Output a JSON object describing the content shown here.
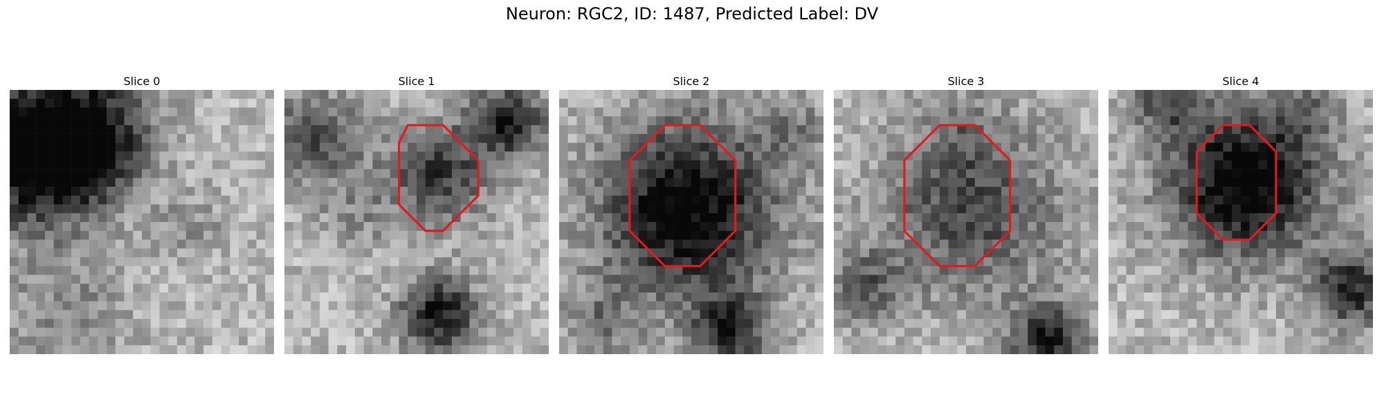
{
  "title": "Neuron: RGC2, ID: 1487, Predicted Label: DV",
  "contour_color": "#e31a1c",
  "slices": [
    {
      "label": "Slice 0",
      "contour": null
    },
    {
      "label": "Slice 1",
      "contour": [
        [
          14,
          4
        ],
        [
          18,
          4
        ],
        [
          22,
          8
        ],
        [
          22,
          12
        ],
        [
          18,
          16
        ],
        [
          16,
          16
        ],
        [
          13,
          13
        ],
        [
          13,
          6
        ]
      ]
    },
    {
      "label": "Slice 2",
      "contour": [
        [
          12,
          4
        ],
        [
          16,
          4
        ],
        [
          20,
          8
        ],
        [
          20,
          16
        ],
        [
          16,
          20
        ],
        [
          12,
          20
        ],
        [
          8,
          16
        ],
        [
          8,
          8
        ]
      ]
    },
    {
      "label": "Slice 3",
      "contour": [
        [
          12,
          4
        ],
        [
          16,
          4
        ],
        [
          20,
          8
        ],
        [
          20,
          16
        ],
        [
          16,
          20
        ],
        [
          12,
          20
        ],
        [
          8,
          16
        ],
        [
          8,
          8
        ]
      ]
    },
    {
      "label": "Slice 4",
      "contour": [
        [
          13,
          4
        ],
        [
          16,
          4
        ],
        [
          19,
          7
        ],
        [
          19,
          14
        ],
        [
          16,
          17
        ],
        [
          13,
          17
        ],
        [
          10,
          14
        ],
        [
          10,
          7
        ]
      ]
    }
  ]
}
